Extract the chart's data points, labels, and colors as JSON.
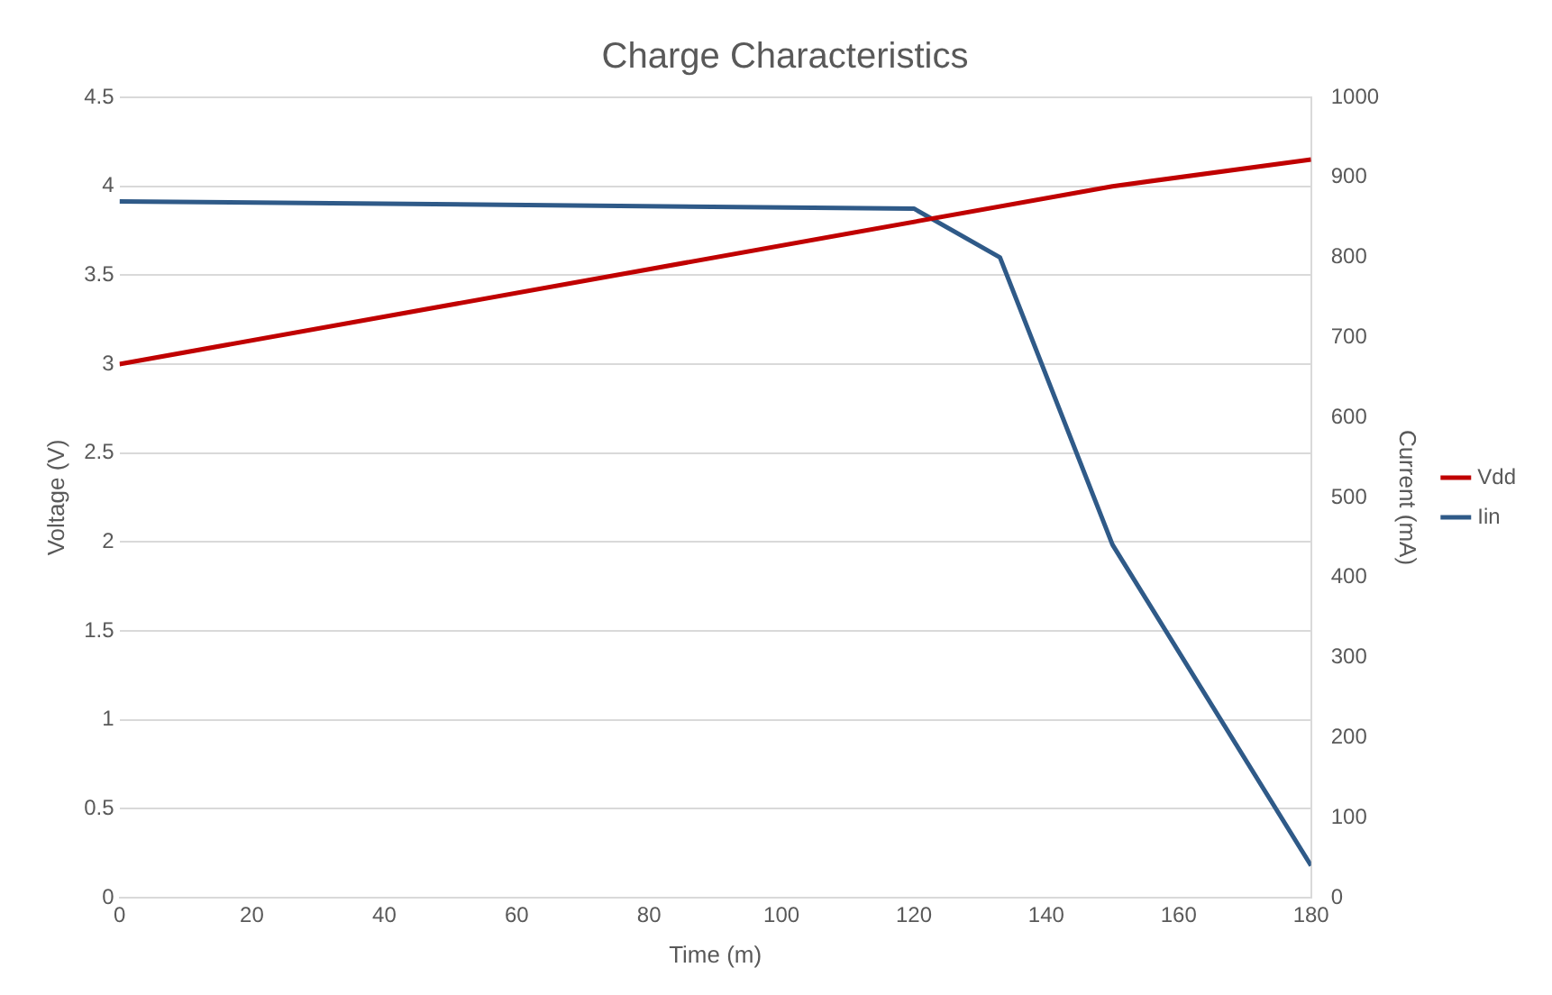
{
  "chart_data": {
    "type": "line",
    "title": "Charge Characteristics",
    "xlabel": "Time (m)",
    "ylabel": "Voltage (V)",
    "y2label": "Current (mA)",
    "xlim": [
      0,
      180
    ],
    "xticks": [
      0,
      20,
      40,
      60,
      80,
      100,
      120,
      140,
      160,
      180
    ],
    "ylim": [
      0,
      4.5
    ],
    "yticks": [
      0,
      0.5,
      1,
      1.5,
      2,
      2.5,
      3,
      3.5,
      4,
      4.5
    ],
    "y2lim": [
      0,
      1000
    ],
    "y2ticks": [
      0,
      100,
      200,
      300,
      400,
      500,
      600,
      700,
      800,
      900,
      1000
    ],
    "grid": "y",
    "legend": "right",
    "marker": "none",
    "series": [
      {
        "name": "Vdd",
        "color": "#c00000",
        "x": [
          0,
          150,
          180
        ],
        "values": [
          3.0,
          4.0,
          4.15
        ]
      },
      {
        "name": "Iin",
        "color": "#2f5a88",
        "axis": "y2",
        "x": [
          0,
          120,
          133,
          150,
          180
        ],
        "values": [
          870,
          861,
          800,
          441,
          40
        ]
      }
    ]
  }
}
